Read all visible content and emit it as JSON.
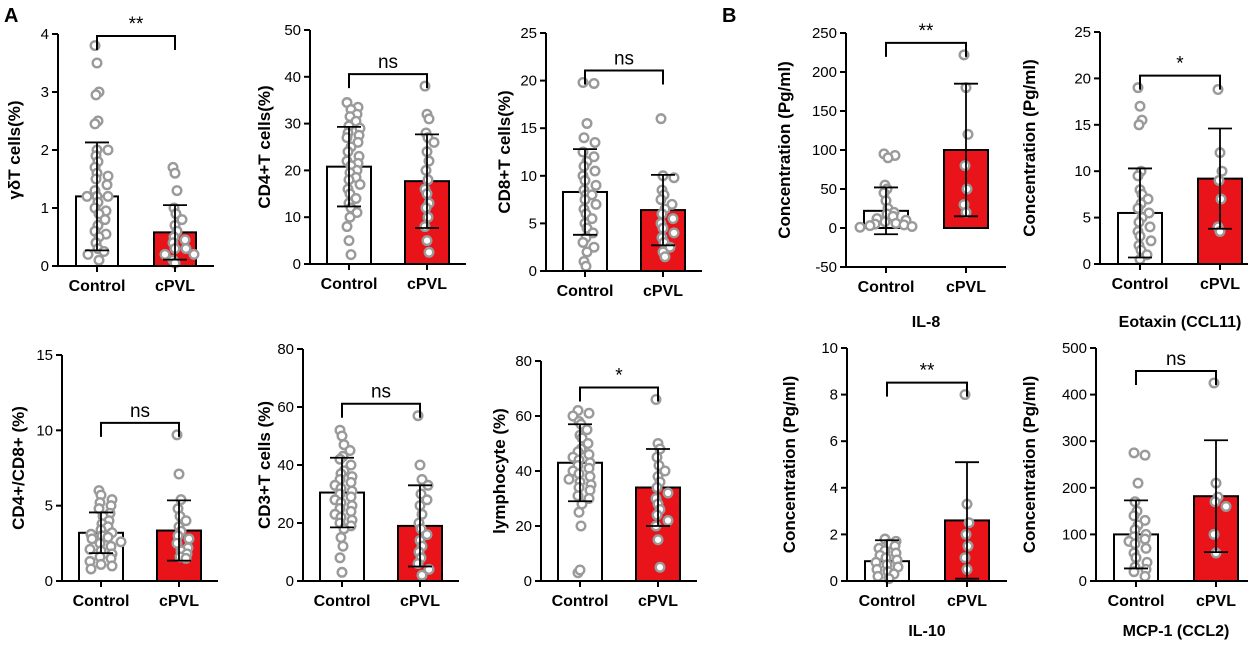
{
  "panel_letters": [
    "A",
    "B"
  ],
  "chart_data": [
    {
      "type": "bar",
      "panel": "A",
      "title": "",
      "categories": [
        "Control",
        "cPVL"
      ],
      "ylabel": "γδT cells(%)",
      "ylim": [
        0,
        4
      ],
      "yticks": [
        "0",
        "1",
        "2",
        "3",
        "4"
      ],
      "means": [
        1.2,
        0.58
      ],
      "sd": [
        0.93,
        0.47
      ],
      "bar_colors": [
        "#ffffff",
        "#e8141a"
      ],
      "points": [
        [
          3.8,
          3.5,
          3.0,
          2.95,
          2.5,
          2.45,
          2.0,
          2.0,
          1.9,
          1.8,
          1.7,
          1.6,
          1.55,
          1.5,
          1.4,
          1.3,
          1.2,
          1.2,
          1.2,
          1.1,
          1.0,
          0.95,
          0.9,
          0.8,
          0.7,
          0.6,
          0.55,
          0.5,
          0.4,
          0.3,
          0.25,
          0.2,
          0.1
        ],
        [
          1.7,
          1.6,
          1.3,
          1.0,
          0.9,
          0.8,
          0.7,
          0.6,
          0.5,
          0.45,
          0.4,
          0.3,
          0.3,
          0.2,
          0.2,
          0.1,
          0.05
        ]
      ],
      "significance": "**"
    },
    {
      "type": "bar",
      "panel": "A",
      "title": "",
      "categories": [
        "Control",
        "cPVL"
      ],
      "ylabel": "CD4+T cells(%)",
      "ylim": [
        0,
        50
      ],
      "yticks": [
        "0",
        "10",
        "20",
        "30",
        "40",
        "50"
      ],
      "means": [
        20.8,
        17.7
      ],
      "sd": [
        8.5,
        10.0
      ],
      "bar_colors": [
        "#ffffff",
        "#e8141a"
      ],
      "points": [
        [
          34.5,
          33.5,
          33,
          32,
          31.5,
          30.5,
          29.5,
          29,
          28,
          27.5,
          27,
          26,
          25,
          24,
          23,
          22,
          21.5,
          21,
          20,
          19.5,
          18.5,
          18,
          17,
          16,
          15,
          14,
          13,
          12,
          11,
          10,
          8,
          5,
          2
        ],
        [
          38,
          32,
          31,
          28,
          27,
          26,
          24,
          22,
          20,
          18,
          16,
          15,
          13,
          12,
          10,
          8,
          5,
          2.5
        ]
      ],
      "significance": "ns"
    },
    {
      "type": "bar",
      "panel": "A",
      "title": "",
      "categories": [
        "Control",
        "cPVL"
      ],
      "ylabel": "CD8+T cells(%)",
      "ylim": [
        0,
        25
      ],
      "yticks": [
        "0",
        "5",
        "10",
        "15",
        "20",
        "25"
      ],
      "means": [
        8.3,
        6.4
      ],
      "sd": [
        4.5,
        3.7
      ],
      "bar_colors": [
        "#ffffff",
        "#e8141a"
      ],
      "points": [
        [
          19.8,
          19.7,
          15.5,
          14,
          13.5,
          12.5,
          12,
          11.5,
          11,
          10.5,
          10,
          9.5,
          9,
          8.5,
          8,
          8,
          7.5,
          7,
          6.5,
          6,
          5.5,
          5,
          4.5,
          4,
          3.5,
          3,
          2.5,
          2,
          1,
          0.5
        ],
        [
          16,
          10,
          9.8,
          8.5,
          8,
          7.5,
          7,
          6.5,
          6,
          5.5,
          5,
          4.5,
          4,
          3.5,
          3,
          2.5,
          2,
          1.5
        ]
      ],
      "significance": "ns"
    },
    {
      "type": "bar",
      "panel": "A",
      "title": "",
      "categories": [
        "Control",
        "cPVL"
      ],
      "ylabel": "CD4+/CD8+ (%)",
      "ylim": [
        0,
        15
      ],
      "yticks": [
        "0",
        "5",
        "10",
        "15"
      ],
      "means": [
        3.2,
        3.35
      ],
      "sd": [
        1.35,
        2.0
      ],
      "bar_colors": [
        "#ffffff",
        "#e8141a"
      ],
      "points": [
        [
          6.0,
          5.7,
          5.4,
          5.2,
          5.0,
          4.8,
          4.5,
          4.3,
          4.0,
          3.8,
          3.6,
          3.4,
          3.2,
          3.1,
          3.0,
          2.9,
          2.8,
          2.6,
          2.5,
          2.3,
          2.1,
          2.0,
          1.8,
          1.6,
          1.5,
          1.3,
          1.1,
          1.0,
          0.8
        ],
        [
          9.7,
          7.1,
          5.4,
          4.8,
          4.3,
          4.0,
          3.6,
          3.3,
          3.0,
          2.8,
          2.5,
          2.2,
          2.0,
          1.8,
          1.6,
          1.5
        ]
      ],
      "significance": "ns"
    },
    {
      "type": "bar",
      "panel": "A",
      "title": "",
      "categories": [
        "Control",
        "cPVL"
      ],
      "ylabel": "CD3+T cells (%)",
      "ylim": [
        0,
        80
      ],
      "yticks": [
        "0",
        "20",
        "40",
        "60",
        "80"
      ],
      "means": [
        30.5,
        19.0
      ],
      "sd": [
        12.0,
        14.0
      ],
      "bar_colors": [
        "#ffffff",
        "#e8141a"
      ],
      "points": [
        [
          52,
          50,
          47,
          45,
          43,
          42,
          40,
          38,
          37,
          36,
          35,
          34,
          33,
          32,
          31,
          30,
          29,
          28,
          27,
          26,
          25,
          24,
          23,
          22,
          21,
          20,
          19,
          18,
          15,
          12,
          8,
          3
        ],
        [
          57,
          40,
          35,
          33,
          30,
          28,
          26,
          23,
          20,
          18,
          16,
          14,
          12,
          10,
          8,
          6,
          4,
          2
        ]
      ],
      "significance": "ns"
    },
    {
      "type": "bar",
      "panel": "A",
      "title": "",
      "categories": [
        "Control",
        "cPVL"
      ],
      "ylabel": "lymphocyte (%)",
      "ylim": [
        0,
        80
      ],
      "yticks": [
        "0",
        "20",
        "40",
        "60",
        "80"
      ],
      "means": [
        43.0,
        34.0
      ],
      "sd": [
        14.0,
        14.0
      ],
      "bar_colors": [
        "#ffffff",
        "#e8141a"
      ],
      "points": [
        [
          62,
          61,
          60,
          58,
          57,
          55,
          53,
          52,
          50,
          48,
          47,
          46,
          45,
          44,
          43,
          42,
          41,
          40,
          39,
          38,
          37,
          36,
          35,
          34,
          33,
          31,
          30,
          28,
          25,
          20,
          3,
          4
        ],
        [
          66,
          50,
          48,
          45,
          42,
          40,
          38,
          36,
          34,
          32,
          30,
          28,
          26,
          24,
          22,
          20,
          15,
          5
        ]
      ],
      "significance": "*"
    },
    {
      "type": "bar",
      "panel": "B",
      "title": "IL-8",
      "categories": [
        "Control",
        "cPVL"
      ],
      "ylabel": "Concentration (Pg/ml)",
      "ylim": [
        -50,
        250
      ],
      "yticks": [
        "-50",
        "0",
        "50",
        "100",
        "150",
        "200",
        "250"
      ],
      "means": [
        22,
        100
      ],
      "sd": [
        30,
        85
      ],
      "bar_colors": [
        "#ffffff",
        "#e8141a"
      ],
      "points": [
        [
          95,
          93,
          90,
          55,
          50,
          45,
          35,
          25,
          20,
          18,
          15,
          12,
          10,
          8,
          6,
          5,
          4,
          3,
          2,
          1
        ],
        [
          222,
          180,
          120,
          80,
          50,
          30,
          20
        ]
      ],
      "significance": "**"
    },
    {
      "type": "bar",
      "panel": "B",
      "title": "Eotaxin (CCL11)",
      "categories": [
        "Control",
        "cPVL"
      ],
      "ylabel": "Concentration (Pg/ml)",
      "ylim": [
        0,
        25
      ],
      "yticks": [
        "0",
        "5",
        "10",
        "15",
        "20",
        "25"
      ],
      "means": [
        5.5,
        9.2
      ],
      "sd": [
        4.8,
        5.4
      ],
      "bar_colors": [
        "#ffffff",
        "#e8141a"
      ],
      "points": [
        [
          19,
          17,
          15.5,
          15,
          10,
          9.5,
          8,
          7.5,
          7,
          6.5,
          6,
          5.5,
          5,
          4.5,
          4,
          3.5,
          3,
          2.5,
          2,
          1.5,
          1,
          0.5
        ],
        [
          18.8,
          12,
          10,
          9,
          7,
          4,
          3.5
        ]
      ],
      "significance": "*"
    },
    {
      "type": "bar",
      "panel": "B",
      "title": "IL-10",
      "categories": [
        "Control",
        "cPVL"
      ],
      "ylabel": "Concentration (Pg/ml)",
      "ylim": [
        0,
        10
      ],
      "yticks": [
        "0",
        "2",
        "4",
        "6",
        "8",
        "10"
      ],
      "means": [
        0.85,
        2.6
      ],
      "sd": [
        0.9,
        2.5
      ],
      "bar_colors": [
        "#ffffff",
        "#e8141a"
      ],
      "points": [
        [
          1.8,
          1.7,
          1.6,
          1.5,
          1.4,
          1.3,
          1.2,
          1.1,
          1.0,
          0.9,
          0.8,
          0.7,
          0.6,
          0.5,
          0.4,
          0.3,
          0.2,
          0.1
        ],
        [
          8.0,
          3.3,
          2.5,
          2.0,
          1.5,
          1.0,
          0.5
        ]
      ],
      "significance": "**"
    },
    {
      "type": "bar",
      "panel": "B",
      "title": "MCP-1 (CCL2)",
      "categories": [
        "Control",
        "cPVL"
      ],
      "ylabel": "Concentration (Pg/ml)",
      "ylim": [
        0,
        500
      ],
      "yticks": [
        "0",
        "100",
        "200",
        "300",
        "400",
        "500"
      ],
      "means": [
        100,
        182
      ],
      "sd": [
        73,
        120
      ],
      "bar_colors": [
        "#ffffff",
        "#e8141a"
      ],
      "points": [
        [
          275,
          270,
          210,
          170,
          150,
          140,
          130,
          120,
          110,
          100,
          95,
          90,
          85,
          80,
          70,
          60,
          50,
          40,
          30,
          25,
          20,
          10
        ],
        [
          425,
          210,
          180,
          170,
          160,
          100,
          60
        ]
      ],
      "significance": "ns"
    }
  ]
}
